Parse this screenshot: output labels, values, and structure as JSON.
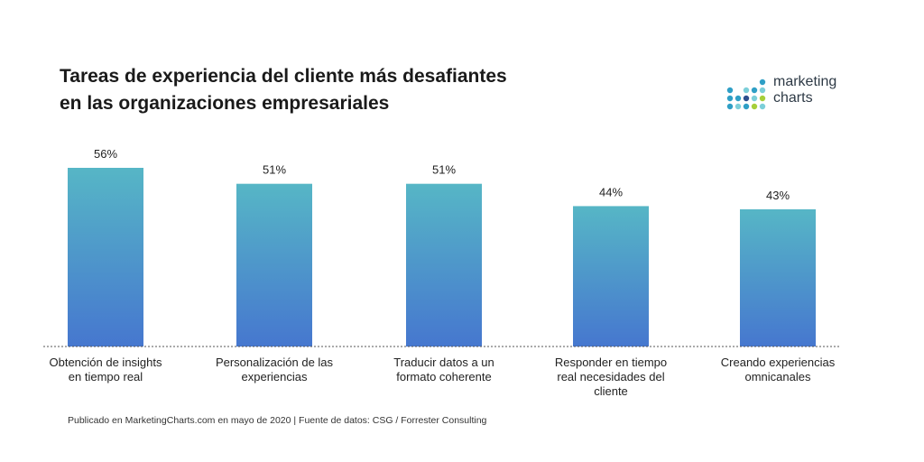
{
  "chart_data": {
    "type": "bar",
    "title_lines": [
      "Tareas de experiencia del cliente más desafiantes",
      "en las organizaciones empresariales"
    ],
    "categories": [
      [
        "Obtención de insights",
        "en tiempo real"
      ],
      [
        "Personalización de las",
        "experiencias"
      ],
      [
        "Traducir datos a un",
        "formato coherente"
      ],
      [
        "Responder en tiempo",
        "real necesidades del",
        "cliente"
      ],
      [
        "Creando experiencias",
        "omnicanales"
      ]
    ],
    "values": [
      56,
      51,
      51,
      44,
      43
    ],
    "value_labels": [
      "56%",
      "51%",
      "51%",
      "44%",
      "43%"
    ],
    "ylim": [
      0,
      56
    ],
    "xlabel": "",
    "ylabel": "",
    "grid": false,
    "colors": {
      "bar_top": "#56b6c6",
      "bar_bottom": "#4677cf",
      "baseline": "#555555"
    }
  },
  "branding": {
    "logo_line1": "marketing",
    "logo_line2": "charts",
    "dot_colors": [
      "#2f9fc6",
      "#7ccfd9",
      "#a6cf3a",
      "#2e4f8e"
    ]
  },
  "footer": {
    "source": "Publicado en MarketingCharts.com en mayo de 2020 | Fuente de datos: CSG / Forrester Consulting"
  }
}
